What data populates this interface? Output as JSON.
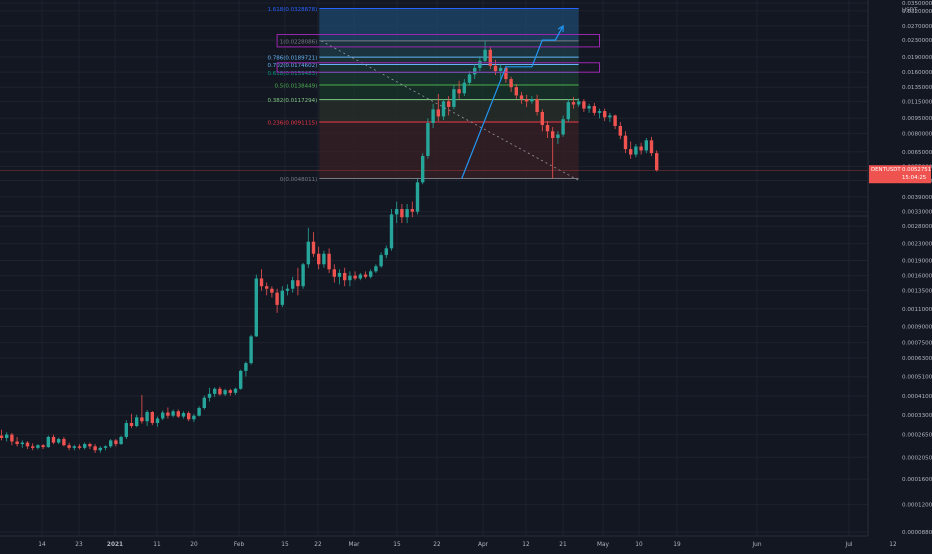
{
  "chart_data": {
    "type": "candlestick",
    "symbol": "DENTUSDT",
    "price_scale_currency": "USDT",
    "y_scale": "log",
    "colors": {
      "background": "#131722",
      "grid": "#1e222d",
      "up": "#26a69a",
      "down": "#ef5350",
      "axis_text": "#b2b5be",
      "trend_path": "#2196f3",
      "fib_level_0": "#787b86",
      "fib_level_0_236": "#f23645",
      "fib_level_0_382": "#81c784",
      "fib_level_0_5": "#4caf50",
      "fib_level_0_618": "#089981",
      "fib_level_0_702": "#64b5f6",
      "fib_level_0_786": "#64b5f6",
      "fib_level_1": "#787b86",
      "fib_level_1_618": "#2962ff",
      "box": "#9c27b0"
    },
    "x_axis_labels": [
      "14",
      "23",
      "2021",
      "11",
      "20",
      "Feb",
      "15",
      "22",
      "Mar",
      "15",
      "22",
      "Apr",
      "12",
      "21",
      "May",
      "10",
      "19",
      "Jun",
      "Jul",
      "12"
    ],
    "y_axis_labels": [
      "0.0350000",
      "0.0320000",
      "0.0270000",
      "0.0230000",
      "0.0190000",
      "0.0160000",
      "0.0135000",
      "0.0115000",
      "0.0095000",
      "0.0080000",
      "0.0065000",
      "0.0055000",
      "0.0047000",
      "0.0039000",
      "0.0033000",
      "0.0028000",
      "0.0023000",
      "0.0019000",
      "0.0016000",
      "0.0013500",
      "0.0011000",
      "0.0009000",
      "0.0007500",
      "0.0006300",
      "0.0005100",
      "0.0004100",
      "0.0003300",
      "0.0002650",
      "0.0002050",
      "0.0001600",
      "0.0001200",
      "0.0000880"
    ],
    "fib_levels": [
      {
        "key": "fib_level_1_618",
        "ratio": "1.618",
        "price": 0.0328878,
        "label": "1.618(0.0328878)"
      },
      {
        "key": "fib_level_1",
        "ratio": "1",
        "price": 0.0228086,
        "label": "1(0.0228086)"
      },
      {
        "key": "fib_level_0_786",
        "ratio": "0.786",
        "price": 0.0189721,
        "label": "0.786(0.0189721)"
      },
      {
        "key": "fib_level_0_702",
        "ratio": "0.702",
        "price": 0.0174602,
        "label": "0.702(0.0174602)"
      },
      {
        "key": "fib_level_0_618",
        "ratio": "0.618",
        "price": 0.0159483,
        "label": "0.618(0.0159483)"
      },
      {
        "key": "fib_level_0_5",
        "ratio": "0.5",
        "price": 0.0138449,
        "label": "0.5(0.0138449)"
      },
      {
        "key": "fib_level_0_382",
        "ratio": "0.382",
        "price": 0.0117294,
        "label": "0.382(0.0117294)"
      },
      {
        "key": "fib_level_0_236",
        "ratio": "0.236",
        "price": 0.0091115,
        "label": "0.236(0.0091115)"
      },
      {
        "key": "fib_level_0",
        "ratio": "0",
        "price": 0.0048011,
        "label": "0(0.0048011)"
      }
    ],
    "last_price": {
      "symbol": "DENTUSDT",
      "value": "0.0052751",
      "countdown": "15:04:25",
      "price": 0.0052751
    },
    "trend_path": [
      {
        "x_index": 88.5,
        "price": 0.0048
      },
      {
        "x_index": 97,
        "price": 0.017
      },
      {
        "x_index": 102,
        "price": 0.017
      },
      {
        "x_index": 104,
        "price": 0.023
      },
      {
        "x_index": 106.5,
        "price": 0.023
      },
      {
        "x_index": 108,
        "price": 0.027
      }
    ],
    "descending_trendline": [
      {
        "x_index": 61.5,
        "price": 0.0228
      },
      {
        "x_index": 111,
        "price": 0.0047
      }
    ],
    "boxes": [
      {
        "x_index_start": 53,
        "x_index_end": 115,
        "price_low": 0.0213,
        "price_high": 0.0245
      },
      {
        "x_index_start": 53,
        "x_index_end": 115,
        "price_low": 0.016,
        "price_high": 0.0178
      }
    ],
    "fib_x_range": [
      61.5,
      111
    ],
    "candles": [
      {
        "o": 0.000262,
        "h": 0.00028,
        "l": 0.000248,
        "c": 0.000255
      },
      {
        "o": 0.000255,
        "h": 0.000272,
        "l": 0.000245,
        "c": 0.000265
      },
      {
        "o": 0.000265,
        "h": 0.00027,
        "l": 0.000235,
        "c": 0.000245
      },
      {
        "o": 0.000245,
        "h": 0.000258,
        "l": 0.000232,
        "c": 0.000238
      },
      {
        "o": 0.000238,
        "h": 0.000248,
        "l": 0.000228,
        "c": 0.000242
      },
      {
        "o": 0.000242,
        "h": 0.000246,
        "l": 0.000225,
        "c": 0.000232
      },
      {
        "o": 0.000232,
        "h": 0.00024,
        "l": 0.000222,
        "c": 0.000228
      },
      {
        "o": 0.000228,
        "h": 0.000238,
        "l": 0.000224,
        "c": 0.000235
      },
      {
        "o": 0.000235,
        "h": 0.000238,
        "l": 0.000225,
        "c": 0.00023
      },
      {
        "o": 0.00023,
        "h": 0.000262,
        "l": 0.000228,
        "c": 0.000258
      },
      {
        "o": 0.000258,
        "h": 0.000265,
        "l": 0.000238,
        "c": 0.000242
      },
      {
        "o": 0.000242,
        "h": 0.000256,
        "l": 0.000238,
        "c": 0.000252
      },
      {
        "o": 0.000252,
        "h": 0.000258,
        "l": 0.000232,
        "c": 0.000235
      },
      {
        "o": 0.000235,
        "h": 0.000242,
        "l": 0.000222,
        "c": 0.000228
      },
      {
        "o": 0.000228,
        "h": 0.000236,
        "l": 0.000222,
        "c": 0.000232
      },
      {
        "o": 0.000232,
        "h": 0.000238,
        "l": 0.000224,
        "c": 0.000228
      },
      {
        "o": 0.000228,
        "h": 0.000242,
        "l": 0.000224,
        "c": 0.000238
      },
      {
        "o": 0.000238,
        "h": 0.000242,
        "l": 0.000225,
        "c": 0.000232
      },
      {
        "o": 0.000232,
        "h": 0.000238,
        "l": 0.000215,
        "c": 0.000222
      },
      {
        "o": 0.000222,
        "h": 0.000232,
        "l": 0.000216,
        "c": 0.000228
      },
      {
        "o": 0.000228,
        "h": 0.000235,
        "l": 0.000222,
        "c": 0.000232
      },
      {
        "o": 0.000232,
        "h": 0.000252,
        "l": 0.000228,
        "c": 0.000248
      },
      {
        "o": 0.000248,
        "h": 0.000252,
        "l": 0.000232,
        "c": 0.000238
      },
      {
        "o": 0.000238,
        "h": 0.000262,
        "l": 0.000236,
        "c": 0.000258
      },
      {
        "o": 0.000258,
        "h": 0.000312,
        "l": 0.000252,
        "c": 0.000302
      },
      {
        "o": 0.000302,
        "h": 0.000335,
        "l": 0.000285,
        "c": 0.000292
      },
      {
        "o": 0.000292,
        "h": 0.000332,
        "l": 0.000288,
        "c": 0.000322
      },
      {
        "o": 0.000322,
        "h": 0.000415,
        "l": 0.0003,
        "c": 0.000308
      },
      {
        "o": 0.000308,
        "h": 0.00035,
        "l": 0.000292,
        "c": 0.000342
      },
      {
        "o": 0.000342,
        "h": 0.000346,
        "l": 0.000295,
        "c": 0.000302
      },
      {
        "o": 0.000302,
        "h": 0.000325,
        "l": 0.00029,
        "c": 0.000318
      },
      {
        "o": 0.000318,
        "h": 0.000348,
        "l": 0.000312,
        "c": 0.00034
      },
      {
        "o": 0.00034,
        "h": 0.00036,
        "l": 0.000318,
        "c": 0.000328
      },
      {
        "o": 0.000328,
        "h": 0.000352,
        "l": 0.000322,
        "c": 0.000345
      },
      {
        "o": 0.000345,
        "h": 0.000352,
        "l": 0.00032,
        "c": 0.000325
      },
      {
        "o": 0.000325,
        "h": 0.000345,
        "l": 0.000318,
        "c": 0.000338
      },
      {
        "o": 0.000338,
        "h": 0.000345,
        "l": 0.000308,
        "c": 0.000315
      },
      {
        "o": 0.000315,
        "h": 0.000335,
        "l": 0.000305,
        "c": 0.000328
      },
      {
        "o": 0.000328,
        "h": 0.000365,
        "l": 0.000325,
        "c": 0.000358
      },
      {
        "o": 0.000358,
        "h": 0.000412,
        "l": 0.000352,
        "c": 0.000402
      },
      {
        "o": 0.000402,
        "h": 0.00045,
        "l": 0.000385,
        "c": 0.00042
      },
      {
        "o": 0.00042,
        "h": 0.000452,
        "l": 0.000405,
        "c": 0.000445
      },
      {
        "o": 0.000445,
        "h": 0.000455,
        "l": 0.000412,
        "c": 0.000418
      },
      {
        "o": 0.000418,
        "h": 0.000445,
        "l": 0.00041,
        "c": 0.000438
      },
      {
        "o": 0.000438,
        "h": 0.000445,
        "l": 0.000412,
        "c": 0.000425
      },
      {
        "o": 0.000425,
        "h": 0.00045,
        "l": 0.000415,
        "c": 0.000445
      },
      {
        "o": 0.000445,
        "h": 0.000552,
        "l": 0.00044,
        "c": 0.000545
      },
      {
        "o": 0.000545,
        "h": 0.000605,
        "l": 0.000512,
        "c": 0.000595
      },
      {
        "o": 0.000595,
        "h": 0.00082,
        "l": 0.000585,
        "c": 0.000805
      },
      {
        "o": 0.000805,
        "h": 0.00162,
        "l": 0.0008,
        "c": 0.00155
      },
      {
        "o": 0.00155,
        "h": 0.00172,
        "l": 0.00135,
        "c": 0.00142
      },
      {
        "o": 0.00142,
        "h": 0.00148,
        "l": 0.00128,
        "c": 0.00138
      },
      {
        "o": 0.00138,
        "h": 0.00142,
        "l": 0.00125,
        "c": 0.00132
      },
      {
        "o": 0.00132,
        "h": 0.00138,
        "l": 0.00105,
        "c": 0.00115
      },
      {
        "o": 0.00115,
        "h": 0.00142,
        "l": 0.00112,
        "c": 0.00135
      },
      {
        "o": 0.00135,
        "h": 0.00145,
        "l": 0.00128,
        "c": 0.00138
      },
      {
        "o": 0.00138,
        "h": 0.00158,
        "l": 0.00132,
        "c": 0.00152
      },
      {
        "o": 0.00152,
        "h": 0.00175,
        "l": 0.00128,
        "c": 0.00142
      },
      {
        "o": 0.00142,
        "h": 0.00185,
        "l": 0.00138,
        "c": 0.00182
      },
      {
        "o": 0.00182,
        "h": 0.00275,
        "l": 0.00175,
        "c": 0.00235
      },
      {
        "o": 0.00235,
        "h": 0.00262,
        "l": 0.00198,
        "c": 0.00205
      },
      {
        "o": 0.00205,
        "h": 0.00222,
        "l": 0.00172,
        "c": 0.00182
      },
      {
        "o": 0.00182,
        "h": 0.00212,
        "l": 0.00175,
        "c": 0.00205
      },
      {
        "o": 0.00205,
        "h": 0.00218,
        "l": 0.00165,
        "c": 0.00172
      },
      {
        "o": 0.00172,
        "h": 0.00182,
        "l": 0.00148,
        "c": 0.00158
      },
      {
        "o": 0.00158,
        "h": 0.00172,
        "l": 0.00145,
        "c": 0.00165
      },
      {
        "o": 0.00165,
        "h": 0.00175,
        "l": 0.00142,
        "c": 0.00152
      },
      {
        "o": 0.00152,
        "h": 0.00168,
        "l": 0.00142,
        "c": 0.0016
      },
      {
        "o": 0.0016,
        "h": 0.00168,
        "l": 0.00152,
        "c": 0.00155
      },
      {
        "o": 0.00155,
        "h": 0.00165,
        "l": 0.00152,
        "c": 0.00162
      },
      {
        "o": 0.00162,
        "h": 0.00168,
        "l": 0.00155,
        "c": 0.00158
      },
      {
        "o": 0.00158,
        "h": 0.00172,
        "l": 0.00155,
        "c": 0.00168
      },
      {
        "o": 0.00168,
        "h": 0.00182,
        "l": 0.00165,
        "c": 0.00178
      },
      {
        "o": 0.00178,
        "h": 0.00208,
        "l": 0.00175,
        "c": 0.00202
      },
      {
        "o": 0.00202,
        "h": 0.00225,
        "l": 0.00195,
        "c": 0.00218
      },
      {
        "o": 0.00218,
        "h": 0.0034,
        "l": 0.00212,
        "c": 0.0032
      },
      {
        "o": 0.0032,
        "h": 0.0037,
        "l": 0.0029,
        "c": 0.0034
      },
      {
        "o": 0.0034,
        "h": 0.0036,
        "l": 0.0029,
        "c": 0.0031
      },
      {
        "o": 0.0031,
        "h": 0.0036,
        "l": 0.0029,
        "c": 0.0034
      },
      {
        "o": 0.0034,
        "h": 0.0037,
        "l": 0.0031,
        "c": 0.0033
      },
      {
        "o": 0.0033,
        "h": 0.0048,
        "l": 0.0032,
        "c": 0.0046
      },
      {
        "o": 0.0046,
        "h": 0.0064,
        "l": 0.0045,
        "c": 0.0062
      },
      {
        "o": 0.0062,
        "h": 0.0095,
        "l": 0.006,
        "c": 0.009
      },
      {
        "o": 0.009,
        "h": 0.0112,
        "l": 0.0085,
        "c": 0.0105
      },
      {
        "o": 0.0105,
        "h": 0.0125,
        "l": 0.0092,
        "c": 0.0097
      },
      {
        "o": 0.0097,
        "h": 0.0118,
        "l": 0.0093,
        "c": 0.0115
      },
      {
        "o": 0.0115,
        "h": 0.0122,
        "l": 0.0098,
        "c": 0.0108
      },
      {
        "o": 0.0108,
        "h": 0.0138,
        "l": 0.0105,
        "c": 0.0132
      },
      {
        "o": 0.0132,
        "h": 0.0145,
        "l": 0.0118,
        "c": 0.0126
      },
      {
        "o": 0.0126,
        "h": 0.0148,
        "l": 0.0122,
        "c": 0.0142
      },
      {
        "o": 0.0142,
        "h": 0.0162,
        "l": 0.0138,
        "c": 0.0156
      },
      {
        "o": 0.0156,
        "h": 0.0175,
        "l": 0.0148,
        "c": 0.0168
      },
      {
        "o": 0.0168,
        "h": 0.0192,
        "l": 0.0162,
        "c": 0.0182
      },
      {
        "o": 0.0182,
        "h": 0.0228,
        "l": 0.0178,
        "c": 0.0206
      },
      {
        "o": 0.0206,
        "h": 0.0214,
        "l": 0.0166,
        "c": 0.0172
      },
      {
        "o": 0.0172,
        "h": 0.0184,
        "l": 0.0155,
        "c": 0.0162
      },
      {
        "o": 0.0162,
        "h": 0.0175,
        "l": 0.0148,
        "c": 0.0168
      },
      {
        "o": 0.0168,
        "h": 0.0172,
        "l": 0.0142,
        "c": 0.0148
      },
      {
        "o": 0.0148,
        "h": 0.0152,
        "l": 0.0128,
        "c": 0.0135
      },
      {
        "o": 0.0135,
        "h": 0.014,
        "l": 0.0118,
        "c": 0.0123
      },
      {
        "o": 0.0123,
        "h": 0.0128,
        "l": 0.0112,
        "c": 0.0118
      },
      {
        "o": 0.0118,
        "h": 0.0124,
        "l": 0.0108,
        "c": 0.0115
      },
      {
        "o": 0.0115,
        "h": 0.0122,
        "l": 0.0112,
        "c": 0.0118
      },
      {
        "o": 0.0118,
        "h": 0.0124,
        "l": 0.0098,
        "c": 0.0102
      },
      {
        "o": 0.0102,
        "h": 0.0105,
        "l": 0.0082,
        "c": 0.0088
      },
      {
        "o": 0.0088,
        "h": 0.0092,
        "l": 0.0076,
        "c": 0.0082
      },
      {
        "o": 0.0082,
        "h": 0.0086,
        "l": 0.0048,
        "c": 0.0076
      },
      {
        "o": 0.0076,
        "h": 0.0082,
        "l": 0.0071,
        "c": 0.0079
      },
      {
        "o": 0.0079,
        "h": 0.0098,
        "l": 0.0077,
        "c": 0.0094
      },
      {
        "o": 0.0094,
        "h": 0.0118,
        "l": 0.0091,
        "c": 0.0114
      },
      {
        "o": 0.0114,
        "h": 0.0121,
        "l": 0.0106,
        "c": 0.0111
      },
      {
        "o": 0.0111,
        "h": 0.0119,
        "l": 0.0108,
        "c": 0.0115
      },
      {
        "o": 0.0115,
        "h": 0.0118,
        "l": 0.0102,
        "c": 0.0106
      },
      {
        "o": 0.0106,
        "h": 0.0112,
        "l": 0.0101,
        "c": 0.0109
      },
      {
        "o": 0.0109,
        "h": 0.0113,
        "l": 0.0098,
        "c": 0.0101
      },
      {
        "o": 0.0101,
        "h": 0.0106,
        "l": 0.0095,
        "c": 0.0103
      },
      {
        "o": 0.0103,
        "h": 0.0106,
        "l": 0.0092,
        "c": 0.0096
      },
      {
        "o": 0.0096,
        "h": 0.0101,
        "l": 0.0091,
        "c": 0.0098
      },
      {
        "o": 0.0098,
        "h": 0.0099,
        "l": 0.0084,
        "c": 0.0087
      },
      {
        "o": 0.0087,
        "h": 0.0091,
        "l": 0.0075,
        "c": 0.0078
      },
      {
        "o": 0.0078,
        "h": 0.0082,
        "l": 0.0064,
        "c": 0.0067
      },
      {
        "o": 0.0067,
        "h": 0.0073,
        "l": 0.006,
        "c": 0.0063
      },
      {
        "o": 0.0063,
        "h": 0.0071,
        "l": 0.0061,
        "c": 0.0069
      },
      {
        "o": 0.0069,
        "h": 0.0072,
        "l": 0.0063,
        "c": 0.0066
      },
      {
        "o": 0.0066,
        "h": 0.0076,
        "l": 0.0064,
        "c": 0.0074
      },
      {
        "o": 0.0074,
        "h": 0.0077,
        "l": 0.0062,
        "c": 0.0064
      },
      {
        "o": 0.0064,
        "h": 0.0066,
        "l": 0.0052,
        "c": 0.00528
      }
    ]
  }
}
